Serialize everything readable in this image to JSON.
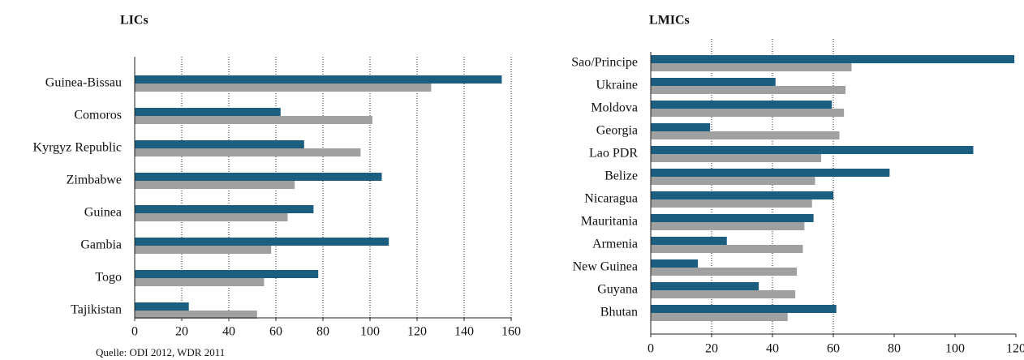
{
  "chart_data": [
    {
      "type": "hbar",
      "title": "LICs",
      "categories": [
        "Guinea-Bissau",
        "Comoros",
        "Kyrgyz Republic",
        "Zimbabwe",
        "Guinea",
        "Gambia",
        "Togo",
        "Tajikistan"
      ],
      "series": [
        {
          "color": "#1b5e80",
          "values": [
            156,
            62,
            72,
            105,
            76,
            108,
            78,
            23
          ]
        },
        {
          "color": "#a0a0a0",
          "values": [
            126,
            101,
            96,
            68,
            65,
            58,
            55,
            52
          ]
        }
      ],
      "xlim": [
        0,
        160
      ],
      "xticks": [
        0,
        20,
        40,
        60,
        80,
        100,
        120,
        140,
        160
      ],
      "grid_ticks": [
        20,
        40,
        60,
        80,
        100,
        120,
        140,
        160
      ],
      "source": "Quelle: ODI 2012, WDR 2011"
    },
    {
      "type": "hbar",
      "title": "LMICs",
      "categories": [
        "Sao/Principe",
        "Ukraine",
        "Moldova",
        "Georgia",
        "Lao PDR",
        "Belize",
        "Nicaragua",
        "Mauritania",
        "Armenia",
        "New Guinea",
        "Guyana",
        "Bhutan"
      ],
      "series": [
        {
          "color": "#1b5e80",
          "values": [
            119.5,
            41,
            59.5,
            19.5,
            106,
            78.5,
            60,
            53.5,
            25,
            15.5,
            35.5,
            61
          ]
        },
        {
          "color": "#a0a0a0",
          "values": [
            66,
            64,
            63.5,
            62,
            56,
            54,
            53,
            50.5,
            50,
            48,
            47.5,
            45
          ]
        }
      ],
      "xlim": [
        0,
        120
      ],
      "xticks": [
        0,
        20,
        40,
        60,
        80,
        100,
        120
      ],
      "grid_ticks": [
        20,
        40,
        60
      ]
    }
  ]
}
